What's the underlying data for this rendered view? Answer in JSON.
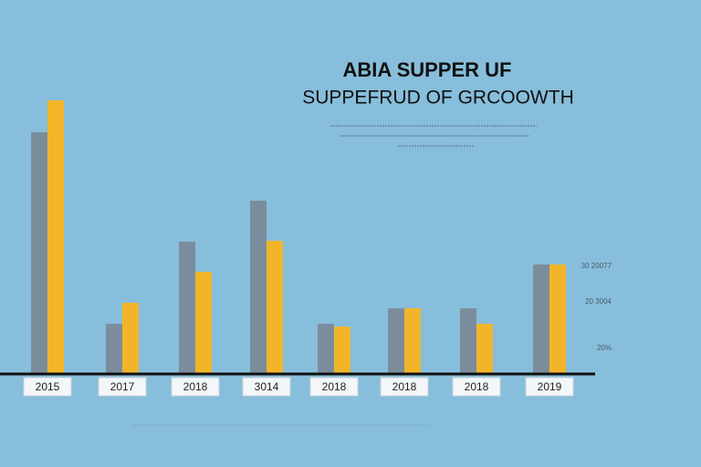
{
  "chart_data": {
    "type": "bar",
    "title": "ABIA SUPPER UF",
    "subtitle": "SUPPEFRUD OF GRCOOWTH",
    "categories": [
      "2015",
      "2017",
      "2018",
      "3014",
      "2018",
      "2018",
      "2018",
      "2019"
    ],
    "series": [
      {
        "color": "#7b8d9c",
        "values": [
          265,
          55,
          145,
          190,
          55,
          72,
          72,
          120
        ]
      },
      {
        "color": "#f2b52a",
        "values": [
          300,
          78,
          112,
          146,
          52,
          72,
          55,
          120
        ]
      }
    ],
    "side_labels": [
      "30 20077",
      "20 3004",
      "20%"
    ],
    "ylim": [
      0,
      310
    ]
  }
}
